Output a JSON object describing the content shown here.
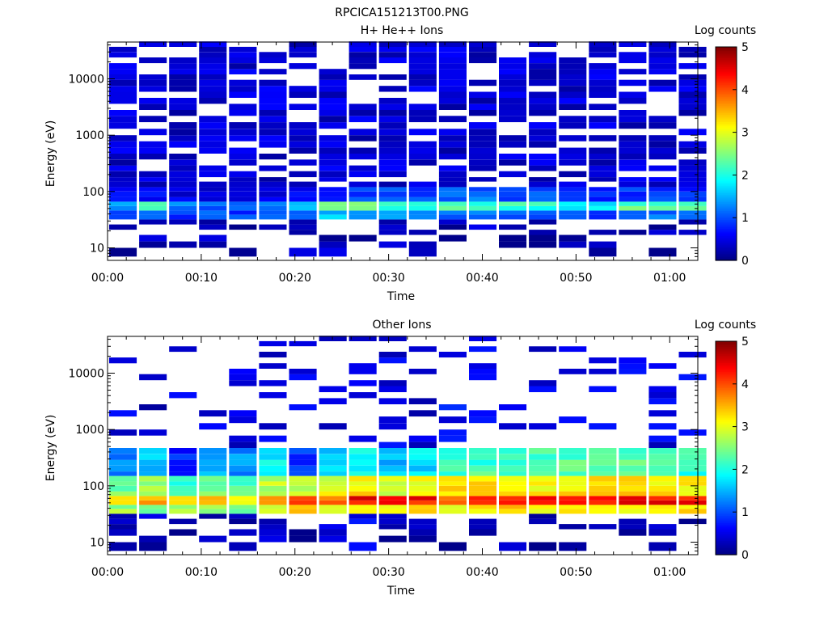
{
  "page": {
    "title": "RPCICA151213T00.PNG"
  },
  "chart_data": [
    {
      "type": "heatmap",
      "title": "H+ He++ Ions",
      "xlabel": "Time",
      "ylabel": "Energy (eV)",
      "ylog": true,
      "ylim": [
        6,
        45000
      ],
      "x_ticks": [
        "00:00",
        "00:10",
        "00:20",
        "00:30",
        "00:40",
        "00:50",
        "01:00"
      ],
      "x_tick_minutes": [
        0,
        10,
        20,
        30,
        40,
        50,
        60
      ],
      "xlim_minutes": [
        0,
        63
      ],
      "y_ticks": [
        "10",
        "100",
        "1000",
        "10000"
      ],
      "y_tick_values": [
        10,
        100,
        1000,
        10000
      ],
      "colorbar": {
        "label": "Log counts",
        "min": 0,
        "max": 5,
        "ticks": [
          "0",
          "1",
          "2",
          "3",
          "4",
          "5"
        ]
      },
      "columns_minutes": [
        1.6,
        4.8,
        8.0,
        11.2,
        14.4,
        17.6,
        20.8,
        24.0,
        27.2,
        30.4,
        33.6,
        36.8,
        40.0,
        43.2,
        46.4,
        49.6,
        52.8,
        56.0,
        59.2,
        62.4
      ],
      "energy_bins_eV": [
        7,
        10,
        13,
        17,
        21,
        26,
        32,
        39,
        46,
        55,
        66,
        80,
        100,
        120,
        150,
        180,
        230,
        290,
        370,
        470,
        600,
        780,
        1000,
        1300,
        1700,
        2200,
        2800,
        3600,
        4600,
        5900,
        7500,
        9600,
        12000,
        15000,
        19000,
        24000,
        30000,
        37000
      ],
      "bands": [
        {
          "emin": 40,
          "emax": 58,
          "column_levels": [
            1.5,
            2.2,
            1.3,
            1.0,
            1.2,
            1.1,
            1.4,
            2.6,
            2.4,
            2.1,
            2.0,
            2.2,
            2.1,
            2.1,
            2.1,
            1.9,
            1.8,
            2.3,
            2.3,
            2.2
          ]
        },
        {
          "emin": 30,
          "emax": 40,
          "column_levels": [
            0.8,
            1.0,
            0.8,
            1.0,
            0.9,
            1.0,
            1.0,
            1.6,
            1.2,
            1.3,
            1.2,
            1.2,
            1.2,
            1.1,
            1.0,
            1.1,
            1.0,
            1.2,
            1.2,
            1.1
          ]
        },
        {
          "emin": 58,
          "emax": 110,
          "column_levels": [
            0.5,
            0.6,
            0.5,
            0.4,
            0.5,
            0.6,
            0.5,
            0.8,
            0.9,
            0.9,
            0.9,
            1.1,
            1.1,
            1.0,
            1.0,
            0.9,
            0.8,
            0.9,
            0.9,
            0.8
          ]
        },
        {
          "emin": 110,
          "emax": 40000,
          "column_levels": [
            0.4,
            0.4,
            0.4,
            0.4,
            0.4,
            0.4,
            0.4,
            0.4,
            0.4,
            0.4,
            0.4,
            0.4,
            0.4,
            0.4,
            0.4,
            0.4,
            0.4,
            0.4,
            0.4,
            0.4
          ]
        },
        {
          "emin": 7,
          "emax": 30,
          "column_levels": [
            0.2,
            0.3,
            0.3,
            0.3,
            0.2,
            0.3,
            0.3,
            0.3,
            0.3,
            0.3,
            0.3,
            0.2,
            0.3,
            0.2,
            0.2,
            0.3,
            0.2,
            0.2,
            0.2,
            0.3
          ]
        }
      ]
    },
    {
      "type": "heatmap",
      "title": "Other Ions",
      "xlabel": "Time",
      "ylabel": "Energy (eV)",
      "ylog": true,
      "ylim": [
        6,
        45000
      ],
      "x_ticks": [
        "00:00",
        "00:10",
        "00:20",
        "00:30",
        "00:40",
        "00:50",
        "01:00"
      ],
      "x_tick_minutes": [
        0,
        10,
        20,
        30,
        40,
        50,
        60
      ],
      "xlim_minutes": [
        0,
        63
      ],
      "y_ticks": [
        "10",
        "100",
        "1000",
        "10000"
      ],
      "y_tick_values": [
        10,
        100,
        1000,
        10000
      ],
      "colorbar": {
        "label": "Log counts",
        "min": 0,
        "max": 5,
        "ticks": [
          "0",
          "1",
          "2",
          "3",
          "4",
          "5"
        ]
      },
      "columns_minutes": [
        1.6,
        4.8,
        8.0,
        11.2,
        14.4,
        17.6,
        20.8,
        24.0,
        27.2,
        30.4,
        33.6,
        36.8,
        40.0,
        43.2,
        46.4,
        49.6,
        52.8,
        56.0,
        59.2,
        62.4
      ],
      "energy_bins_eV": [
        7,
        10,
        13,
        17,
        21,
        26,
        32,
        39,
        46,
        55,
        66,
        80,
        100,
        120,
        150,
        180,
        230,
        290,
        370,
        470,
        600,
        780,
        1000,
        1300,
        1700,
        2200,
        2800,
        3600,
        4600,
        5900,
        7500,
        9600,
        12000,
        15000,
        19000,
        24000,
        30000,
        37000
      ],
      "bands": [
        {
          "emin": 40,
          "emax": 58,
          "column_levels": [
            3.3,
            3.6,
            3.1,
            3.4,
            3.3,
            3.5,
            4.2,
            3.9,
            4.4,
            4.4,
            4.3,
            4.0,
            4.3,
            4.4,
            4.4,
            4.3,
            4.4,
            4.4,
            4.4,
            4.3
          ]
        },
        {
          "emin": 32,
          "emax": 40,
          "column_levels": [
            2.6,
            2.4,
            2.8,
            2.6,
            2.5,
            2.8,
            3.3,
            3.0,
            3.3,
            3.2,
            3.2,
            3.0,
            3.2,
            3.3,
            3.2,
            3.2,
            3.3,
            3.2,
            3.3,
            3.2
          ]
        },
        {
          "emin": 58,
          "emax": 130,
          "column_levels": [
            2.4,
            2.7,
            2.2,
            2.5,
            2.3,
            2.8,
            2.9,
            3.0,
            3.2,
            3.0,
            3.1,
            3.2,
            3.3,
            3.2,
            3.2,
            3.2,
            3.3,
            3.3,
            3.2,
            3.2
          ]
        },
        {
          "emin": 130,
          "emax": 380,
          "column_levels": [
            1.2,
            1.6,
            0.8,
            1.4,
            1.3,
            1.9,
            0.9,
            1.6,
            1.8,
            1.6,
            1.7,
            2.1,
            2.2,
            2.0,
            2.2,
            2.3,
            2.4,
            2.3,
            2.2,
            2.1
          ]
        },
        {
          "emin": 380,
          "emax": 40000,
          "column_levels": [
            0.5,
            0.4,
            0.5,
            0.5,
            0.4,
            0.5,
            0.5,
            0.5,
            0.4,
            0.5,
            0.4,
            0.6,
            0.5,
            0.4,
            0.5,
            0.5,
            0.5,
            0.5,
            0.5,
            0.5
          ]
        },
        {
          "emin": 7,
          "emax": 32,
          "column_levels": [
            0.2,
            0.3,
            0.2,
            0.3,
            0.2,
            0.3,
            0.2,
            0.4,
            0.6,
            0.3,
            0.2,
            0.2,
            0.3,
            0.3,
            0.2,
            0.3,
            0.2,
            0.3,
            0.3,
            0.2
          ]
        }
      ]
    }
  ]
}
